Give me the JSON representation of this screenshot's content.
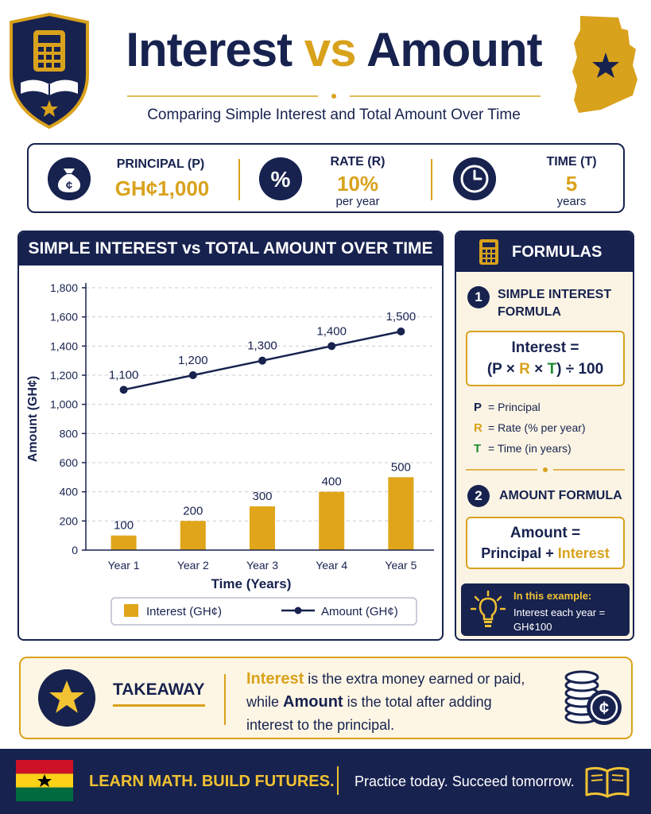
{
  "header": {
    "title_main": "Interest",
    "title_vs": "vs",
    "title_end": "Amount",
    "subtitle": "Comparing Simple Interest and Total Amount Over Time",
    "currency_symbol": "¢"
  },
  "info": {
    "principal_label": "PRINCIPAL (P)",
    "principal_value": "GH¢1,000",
    "principal_icon_symbol": "¢",
    "rate_label": "RATE (R)",
    "rate_value": "10%",
    "rate_unit": "per year",
    "rate_icon_symbol": "%",
    "time_label": "TIME (T)",
    "time_value": "5",
    "time_unit": "years"
  },
  "chart_panel": {
    "title": "SIMPLE INTEREST vs TOTAL AMOUNT OVER TIME"
  },
  "chart_data": {
    "type": "bar",
    "categories": [
      "Year 1",
      "Year 2",
      "Year 3",
      "Year 4",
      "Year 5"
    ],
    "series": [
      {
        "name": "Interest (GH¢)",
        "type": "bar",
        "values": [
          100,
          200,
          300,
          400,
          500
        ],
        "labels": [
          "100",
          "200",
          "300",
          "400",
          "500"
        ],
        "color": "#e0a51a"
      },
      {
        "name": "Amount (GH¢)",
        "type": "line",
        "values": [
          1100,
          1200,
          1300,
          1400,
          1500
        ],
        "labels": [
          "1,100",
          "1,200",
          "1,300",
          "1,400",
          "1,500"
        ],
        "color": "#17224f"
      }
    ],
    "xlabel": "Time (Years)",
    "ylabel": "Amount (GH¢)",
    "ylim": [
      0,
      1800
    ],
    "yticks": [
      0,
      200,
      400,
      600,
      800,
      1000,
      1200,
      1400,
      1600,
      1800
    ],
    "ytick_labels": [
      "0",
      "200",
      "400",
      "600",
      "800",
      "1,000",
      "1,200",
      "1,400",
      "1,600",
      "1,800"
    ],
    "grid": true,
    "legend": "bottom"
  },
  "formulas": {
    "title": "FORMULAS",
    "f1_number": "1",
    "f1_heading_1": "SIMPLE INTEREST",
    "f1_heading_2": "FORMULA",
    "f1_line1": "Interest =",
    "f1_open": "(",
    "f1_p": "P",
    "f1_times1": " × ",
    "f1_r": "R",
    "f1_times2": " × ",
    "f1_t": "T",
    "f1_close": ") ÷ 100",
    "legend_p_key": "P",
    "legend_p_text": "= Principal",
    "legend_r_key": "R",
    "legend_r_text": "= Rate (% per year)",
    "legend_t_key": "T",
    "legend_t_text": "= Time (in years)",
    "f2_number": "2",
    "f2_heading": "AMOUNT FORMULA",
    "f2_line1": "Amount =",
    "f2_principal": "Principal",
    "f2_plus": " + ",
    "f2_interest": "Interest",
    "example_heading": "In this example:",
    "example_line1": "Interest each year =",
    "example_line2": "GH¢100"
  },
  "takeaway": {
    "title": "TAKEAWAY",
    "kw_interest": "Interest",
    "text1": " is the extra money earned or paid,",
    "text2": "while ",
    "kw_amount": "Amount",
    "text3": " is the total after adding",
    "text4": "interest to the principal.",
    "coin_symbol": "¢"
  },
  "footer": {
    "slogan": "LEARN MATH. BUILD FUTURES.",
    "tagline": "Practice today. Succeed tomorrow."
  },
  "colors": {
    "navy": "#17224f",
    "gold": "#d9a21c",
    "green": "#1d8a2e"
  },
  "icons": [
    "calculator-shield-icon",
    "ghana-map-icon",
    "money-bag-icon",
    "percent-icon",
    "clock-icon",
    "calculator-icon",
    "lightbulb-icon",
    "star-icon",
    "coins-icon",
    "ghana-flag-icon",
    "open-book-icon"
  ]
}
